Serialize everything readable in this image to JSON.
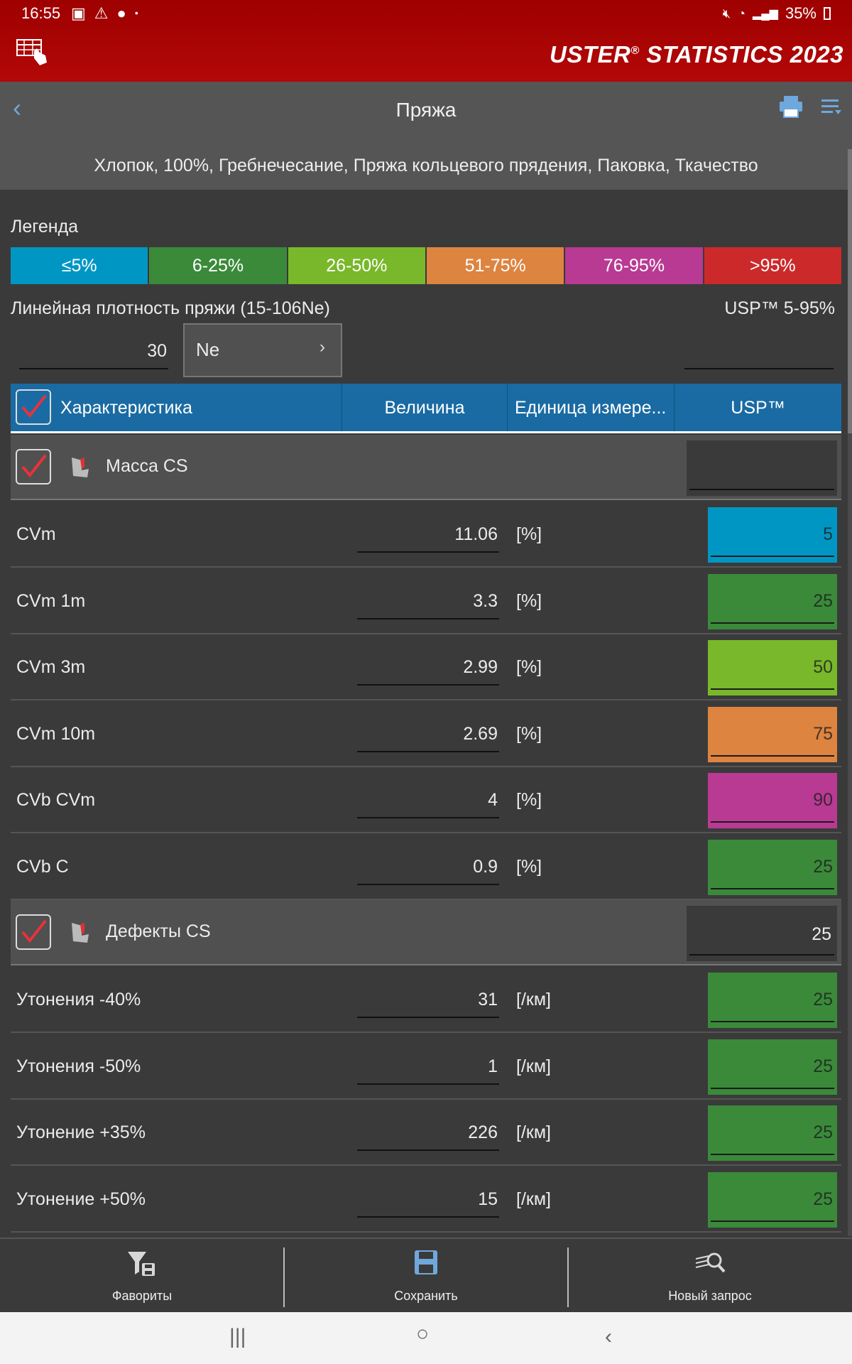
{
  "status": {
    "time": "16:55",
    "battery": "35%"
  },
  "brand": {
    "name": "USTER",
    "reg": "®",
    "stats": "STATISTICS 2023"
  },
  "titlebar": {
    "title": "Пряжа"
  },
  "subtitle": "Хлопок, 100%, Гребнечесание, Пряжа кольцевого прядения, Паковка, Ткачество",
  "legend": {
    "label": "Легенда",
    "segments": [
      {
        "label": "≤5%",
        "color": "#0096c4"
      },
      {
        "label": "6-25%",
        "color": "#3a8a3a"
      },
      {
        "label": "26-50%",
        "color": "#78b82a"
      },
      {
        "label": "51-75%",
        "color": "#dd8440"
      },
      {
        "label": "76-95%",
        "color": "#b83a92"
      },
      {
        "label": ">95%",
        "color": "#cc2a2a"
      }
    ]
  },
  "density": {
    "label": "Линейная плотность пряжи (15-106Ne)",
    "value": "30",
    "unit": "Ne",
    "usp_range": "USP™ 5-95%"
  },
  "table": {
    "headers": {
      "characteristic": "Характеристика",
      "value": "Величина",
      "unit": "Единица измере...",
      "usp": "USP™"
    },
    "groups": [
      {
        "label": "Масса CS",
        "usp": "",
        "rows": [
          {
            "name": "CVm",
            "value": "11.06",
            "unit": "[%]",
            "usp": "5",
            "color": "#0096c4"
          },
          {
            "name": "CVm 1m",
            "value": "3.3",
            "unit": "[%]",
            "usp": "25",
            "color": "#3a8a3a"
          },
          {
            "name": "CVm 3m",
            "value": "2.99",
            "unit": "[%]",
            "usp": "50",
            "color": "#78b82a"
          },
          {
            "name": "CVm 10m",
            "value": "2.69",
            "unit": "[%]",
            "usp": "75",
            "color": "#dd8440"
          },
          {
            "name": "CVb CVm",
            "value": "4",
            "unit": "[%]",
            "usp": "90",
            "color": "#b83a92"
          },
          {
            "name": "CVb C",
            "value": "0.9",
            "unit": "[%]",
            "usp": "25",
            "color": "#3a8a3a"
          }
        ]
      },
      {
        "label": "Дефекты CS",
        "usp": "25",
        "rows": [
          {
            "name": "Утонения -40%",
            "value": "31",
            "unit": "[/км]",
            "usp": "25",
            "color": "#3a8a3a"
          },
          {
            "name": "Утонения -50%",
            "value": "1",
            "unit": "[/км]",
            "usp": "25",
            "color": "#3a8a3a"
          },
          {
            "name": "Утонение +35%",
            "value": "226",
            "unit": "[/км]",
            "usp": "25",
            "color": "#3a8a3a"
          },
          {
            "name": "Утонение +50%",
            "value": "15",
            "unit": "[/км]",
            "usp": "25",
            "color": "#3a8a3a"
          }
        ]
      }
    ]
  },
  "toolbar": {
    "favorites": "Фавориты",
    "save": "Сохранить",
    "new_query": "Новый запрос"
  }
}
